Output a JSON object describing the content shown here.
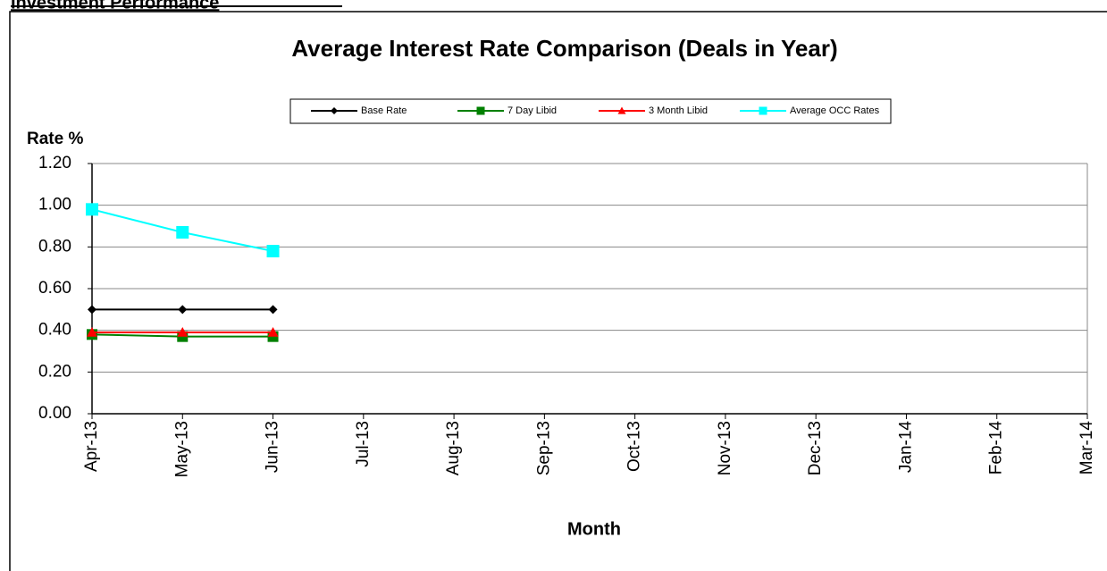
{
  "header": {
    "title": "Investment Performance"
  },
  "chart_data": {
    "type": "line",
    "title": "Average Interest Rate Comparison (Deals in Year)",
    "y_label": "Rate %",
    "x_label": "Month",
    "categories": [
      "Apr-13",
      "May-13",
      "Jun-13",
      "Jul-13",
      "Aug-13",
      "Sep-13",
      "Oct-13",
      "Nov-13",
      "Dec-13",
      "Jan-14",
      "Feb-14",
      "Mar-14"
    ],
    "series": [
      {
        "name": "Base Rate",
        "color": "#000000",
        "marker": "diamond",
        "values": [
          0.5,
          0.5,
          0.5,
          null,
          null,
          null,
          null,
          null,
          null,
          null,
          null,
          null
        ]
      },
      {
        "name": "7 Day Libid",
        "color": "#008000",
        "marker": "square",
        "values": [
          0.38,
          0.37,
          0.37,
          null,
          null,
          null,
          null,
          null,
          null,
          null,
          null,
          null
        ]
      },
      {
        "name": "3 Month Libid",
        "color": "#ff0000",
        "marker": "triangle",
        "values": [
          0.39,
          0.39,
          0.39,
          null,
          null,
          null,
          null,
          null,
          null,
          null,
          null,
          null
        ]
      },
      {
        "name": "Average OCC Rates",
        "color": "#00ffff",
        "marker": "square",
        "values": [
          0.98,
          0.87,
          0.78,
          null,
          null,
          null,
          null,
          null,
          null,
          null,
          null,
          null
        ]
      }
    ],
    "ylim": [
      0,
      1.2
    ],
    "yticks": [
      {
        "value": 0,
        "label": "0.00"
      },
      {
        "value": 0.2,
        "label": "0.20"
      },
      {
        "value": 0.4,
        "label": "0.40"
      },
      {
        "value": 0.6,
        "label": "0.60"
      },
      {
        "value": 0.8,
        "label": "0.80"
      },
      {
        "value": 1.0,
        "label": "1.00"
      },
      {
        "value": 1.2,
        "label": "1.20"
      }
    ],
    "grid": true,
    "legend": "top"
  }
}
